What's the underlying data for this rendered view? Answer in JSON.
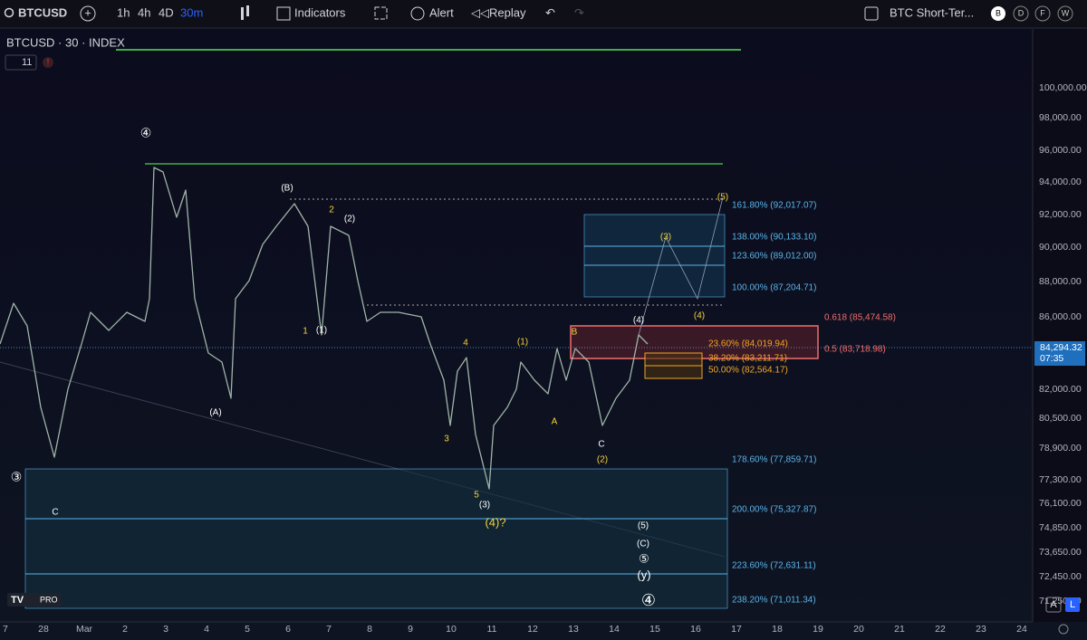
{
  "toolbar": {
    "symbol": "BTCUSD",
    "intervals": [
      "1h",
      "4h",
      "4D",
      "30m"
    ],
    "indicators": "Indicators",
    "alert": "Alert",
    "replay": "Replay",
    "layout_name": "BTC Short-Ter...",
    "buttons": [
      "B",
      "D",
      "F",
      "W"
    ]
  },
  "legend": {
    "title": "BTCUSD · 30 · INDEX",
    "count": 11
  },
  "wave_labels": [
    "④",
    "(B)",
    "2",
    "(2)",
    "1",
    "(1)",
    "(A)",
    "4",
    "(1)",
    "B",
    "(4)",
    "(4)",
    "(3)",
    "(5)",
    "3",
    "A",
    "C",
    "(2)",
    "5",
    "(3)",
    "(4)?",
    "(5)",
    "(C)",
    "⑤",
    "(y)",
    "④",
    "③",
    "C"
  ],
  "fib_levels": [
    "161.80% (92,017.07)",
    "138.00% (90,133.10)",
    "123.60% (89,012.00)",
    "100.00% (87,204.71)",
    "0.618 (85,474.58)",
    "23.60% (84,019.94)",
    "0.5 (83,718.98)",
    "38.20% (83,211.71)",
    "50.00% (82,564.17)",
    "178.60% (77,859.71)",
    "200.00% (75,327.87)",
    "223.60% (72,631.11)",
    "238.20% (71,011.34)"
  ],
  "price_axis": {
    "labels": [
      "100,000.00",
      "98,000.00",
      "96,000.00",
      "94,000.00",
      "92,000.00",
      "90,000.00",
      "88,000.00",
      "86,000.00",
      "82,000.00",
      "80,500.00",
      "78,900.00",
      "77,300.00",
      "76,100.00",
      "74,850.00",
      "73,650.00",
      "72,450.00",
      "71,250.00"
    ],
    "current_price": "84,294.32",
    "countdown": "07:35"
  },
  "time_axis": [
    "7",
    "28",
    "Mar",
    "2",
    "3",
    "4",
    "5",
    "6",
    "7",
    "8",
    "9",
    "10",
    "11",
    "12",
    "13",
    "14",
    "15",
    "16",
    "17",
    "18",
    "19",
    "20",
    "21",
    "22",
    "23",
    "24"
  ],
  "logo": "PRO",
  "corner": [
    "A",
    "L"
  ]
}
